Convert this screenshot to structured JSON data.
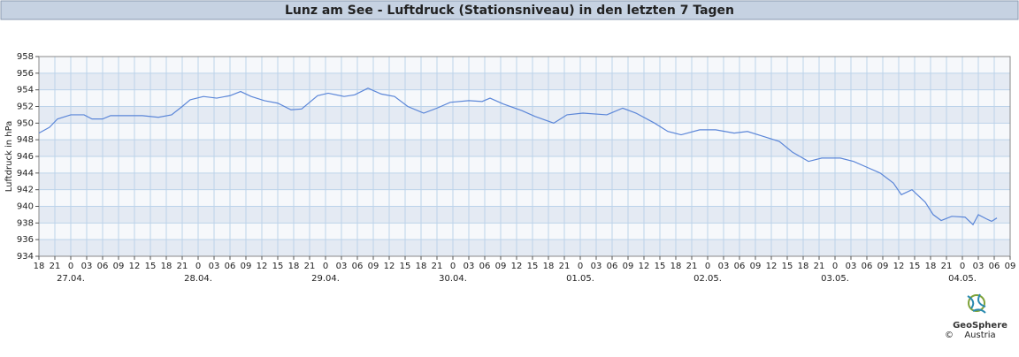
{
  "chart_data": {
    "type": "line",
    "title": "Lunz am See - Luftdruck (Stationsniveau) in den letzten 7 Tagen",
    "y_label": "Luftdruck in hPa",
    "x": [
      0,
      2,
      3.5,
      6,
      8.5,
      10,
      12,
      13.5,
      19.5,
      22.5,
      25,
      27,
      28.5,
      31,
      33.5,
      36,
      38,
      40,
      42.5,
      45,
      47.5,
      49.5,
      51,
      52.5,
      54.5,
      57.5,
      59.5,
      62,
      64.5,
      67,
      69.5,
      72.5,
      75,
      77.5,
      81,
      83.5,
      85,
      87.5,
      91,
      93.5,
      97,
      99.5,
      102.5,
      107,
      110,
      112.5,
      116,
      118.5,
      121,
      124.5,
      127.5,
      131,
      133.5,
      136,
      139.5,
      142,
      145,
      147.5,
      151,
      153.5,
      156,
      158.5,
      161,
      162.5,
      164.5,
      167,
      168.5,
      170,
      172,
      174.5,
      176,
      177,
      178.5,
      179.5,
      180.5
    ],
    "values": [
      948.8,
      949.5,
      950.5,
      951.0,
      951.0,
      950.5,
      950.5,
      950.9,
      950.9,
      950.7,
      951.0,
      952.0,
      952.8,
      953.2,
      953.0,
      953.3,
      953.8,
      953.2,
      952.7,
      952.4,
      951.6,
      951.7,
      952.5,
      953.3,
      953.6,
      953.2,
      953.4,
      954.2,
      953.5,
      953.2,
      952.0,
      951.2,
      951.8,
      952.5,
      952.7,
      952.6,
      953.0,
      952.3,
      951.5,
      950.8,
      950.0,
      951.0,
      951.2,
      951.0,
      951.8,
      951.2,
      950.0,
      949.0,
      948.6,
      949.2,
      949.2,
      948.8,
      949.0,
      948.5,
      947.8,
      946.5,
      945.4,
      945.8,
      945.8,
      945.4,
      944.7,
      944.0,
      942.8,
      941.4,
      942.0,
      940.5,
      939.0,
      938.3,
      938.8,
      938.7,
      937.8,
      939.0,
      938.5,
      938.2,
      938.6
    ],
    "color": "#5b86d8",
    "xlim": [
      0,
      183
    ],
    "ylim": [
      934,
      958
    ],
    "yticks": [
      934,
      936,
      938,
      940,
      942,
      944,
      946,
      948,
      950,
      952,
      954,
      956,
      958
    ],
    "xticks": [
      {
        "value": 0,
        "label": "18"
      },
      {
        "value": 3,
        "label": "21"
      },
      {
        "value": 6,
        "label": "0"
      },
      {
        "value": 9,
        "label": "03"
      },
      {
        "value": 12,
        "label": "06"
      },
      {
        "value": 15,
        "label": "09"
      },
      {
        "value": 18,
        "label": "12"
      },
      {
        "value": 21,
        "label": "15"
      },
      {
        "value": 24,
        "label": "18"
      },
      {
        "value": 27,
        "label": "21"
      },
      {
        "value": 30,
        "label": "0"
      },
      {
        "value": 33,
        "label": "03"
      },
      {
        "value": 36,
        "label": "06"
      },
      {
        "value": 39,
        "label": "09"
      },
      {
        "value": 42,
        "label": "12"
      },
      {
        "value": 45,
        "label": "15"
      },
      {
        "value": 48,
        "label": "18"
      },
      {
        "value": 51,
        "label": "21"
      },
      {
        "value": 54,
        "label": "0"
      },
      {
        "value": 57,
        "label": "03"
      },
      {
        "value": 60,
        "label": "06"
      },
      {
        "value": 63,
        "label": "09"
      },
      {
        "value": 66,
        "label": "12"
      },
      {
        "value": 69,
        "label": "15"
      },
      {
        "value": 72,
        "label": "18"
      },
      {
        "value": 75,
        "label": "21"
      },
      {
        "value": 78,
        "label": "0"
      },
      {
        "value": 81,
        "label": "03"
      },
      {
        "value": 84,
        "label": "06"
      },
      {
        "value": 87,
        "label": "09"
      },
      {
        "value": 90,
        "label": "12"
      },
      {
        "value": 93,
        "label": "15"
      },
      {
        "value": 96,
        "label": "18"
      },
      {
        "value": 99,
        "label": "21"
      },
      {
        "value": 102,
        "label": "0"
      },
      {
        "value": 105,
        "label": "03"
      },
      {
        "value": 108,
        "label": "06"
      },
      {
        "value": 111,
        "label": "09"
      },
      {
        "value": 114,
        "label": "12"
      },
      {
        "value": 117,
        "label": "15"
      },
      {
        "value": 120,
        "label": "18"
      },
      {
        "value": 123,
        "label": "21"
      },
      {
        "value": 126,
        "label": "0"
      },
      {
        "value": 129,
        "label": "03"
      },
      {
        "value": 132,
        "label": "06"
      },
      {
        "value": 135,
        "label": "09"
      },
      {
        "value": 138,
        "label": "12"
      },
      {
        "value": 141,
        "label": "15"
      },
      {
        "value": 144,
        "label": "18"
      },
      {
        "value": 147,
        "label": "21"
      },
      {
        "value": 150,
        "label": "0"
      },
      {
        "value": 153,
        "label": "03"
      },
      {
        "value": 156,
        "label": "06"
      },
      {
        "value": 159,
        "label": "09"
      },
      {
        "value": 162,
        "label": "12"
      },
      {
        "value": 165,
        "label": "15"
      },
      {
        "value": 168,
        "label": "18"
      },
      {
        "value": 171,
        "label": "21"
      },
      {
        "value": 174,
        "label": "0"
      },
      {
        "value": 177,
        "label": "03"
      },
      {
        "value": 180,
        "label": "06"
      },
      {
        "value": 183,
        "label": "09"
      }
    ],
    "date_labels": [
      {
        "value": 6,
        "label": "27.04."
      },
      {
        "value": 30,
        "label": "28.04."
      },
      {
        "value": 54,
        "label": "29.04."
      },
      {
        "value": 78,
        "label": "30.04."
      },
      {
        "value": 102,
        "label": "01.05."
      },
      {
        "value": 126,
        "label": "02.05."
      },
      {
        "value": 150,
        "label": "03.05."
      },
      {
        "value": 174,
        "label": "04.05."
      }
    ],
    "grid": true
  },
  "logo": {
    "name": "GeoSphere",
    "sub": "Austria",
    "copyright": "©"
  }
}
